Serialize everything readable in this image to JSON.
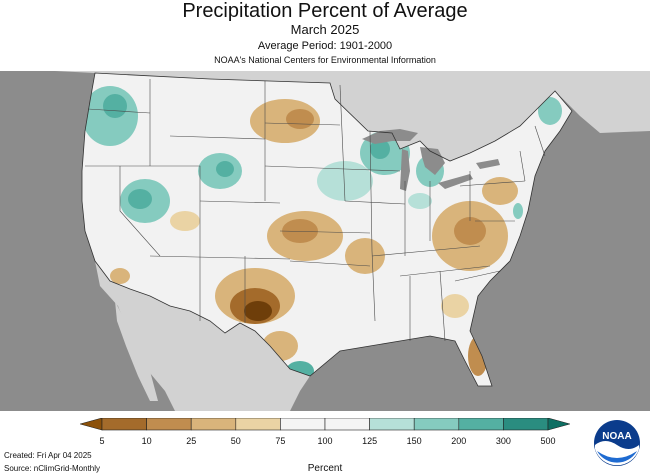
{
  "header": {
    "title": "Precipitation Percent of Average",
    "subtitle": "March 2025",
    "period": "Average Period: 1901-2000",
    "source_line": "NOAA's National Centers for Environmental Information"
  },
  "legend": {
    "units": "Percent",
    "ticks": [
      "5",
      "10",
      "25",
      "50",
      "75",
      "100",
      "125",
      "150",
      "200",
      "300",
      "500"
    ],
    "colors": [
      "#8c510a",
      "#a46b2b",
      "#c08d4f",
      "#d9b47b",
      "#ead3a4",
      "#f4f4f4",
      "#f4f4f4",
      "#b6e0d8",
      "#85cbbf",
      "#54b0a2",
      "#2a8d80",
      "#0e6f63"
    ]
  },
  "footer": {
    "created": "Created: Fri Apr 04 2025",
    "source": "Source: nClimGrid-Monthly"
  },
  "logo": {
    "text": "NOAA",
    "icon": "noaa-logo-icon"
  },
  "map": {
    "background_color": "#8c8c8c",
    "neighbor_land_color": "#d2d2d2",
    "near_normal_color": "#f2f2f2",
    "dry_colors": [
      "#ead3a4",
      "#d9b47b",
      "#c08d4f",
      "#a46b2b",
      "#6e3e0a"
    ],
    "wet_colors": [
      "#b6e0d8",
      "#85cbbf",
      "#54b0a2",
      "#2a8d80"
    ]
  }
}
